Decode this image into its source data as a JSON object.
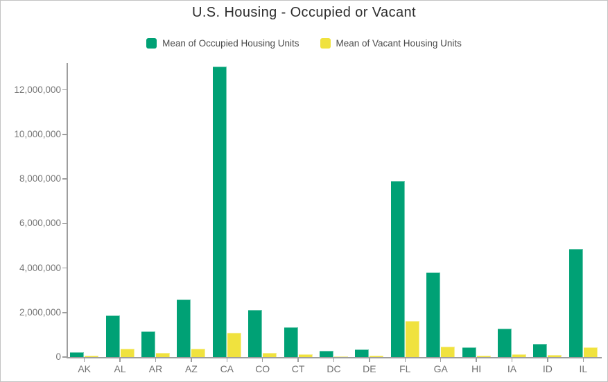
{
  "chart_data": {
    "type": "bar",
    "title": "U.S. Housing - Occupied or Vacant",
    "xlabel": "",
    "ylabel": "",
    "grid": false,
    "legend_position": "top-center",
    "axis_color": "#9e9e9e",
    "tick_label_color": "#767676",
    "title_color": "#2d2d2d",
    "categories": [
      "AK",
      "AL",
      "AR",
      "AZ",
      "CA",
      "CO",
      "CT",
      "DC",
      "DE",
      "FL",
      "GA",
      "HI",
      "IA",
      "ID",
      "IL"
    ],
    "series": [
      {
        "name": "Mean of Occupied Housing Units",
        "color": "#00a175",
        "values": [
          220000,
          1870000,
          1150000,
          2590000,
          13050000,
          2110000,
          1340000,
          265000,
          330000,
          7900000,
          3800000,
          440000,
          1270000,
          600000,
          4870000
        ]
      },
      {
        "name": "Mean of Vacant Housing Units",
        "color": "#f0e23e",
        "values": [
          55000,
          360000,
          190000,
          385000,
          1090000,
          190000,
          120000,
          35000,
          60000,
          1620000,
          470000,
          75000,
          130000,
          80000,
          450000
        ]
      }
    ],
    "ylim": [
      0,
      13200000
    ],
    "yticks": [
      0,
      2000000,
      4000000,
      6000000,
      8000000,
      10000000,
      12000000
    ],
    "ytick_labels": [
      "0",
      "2,000,000",
      "4,000,000",
      "6,000,000",
      "8,000,000",
      "10,000,000",
      "12,000,000"
    ]
  }
}
